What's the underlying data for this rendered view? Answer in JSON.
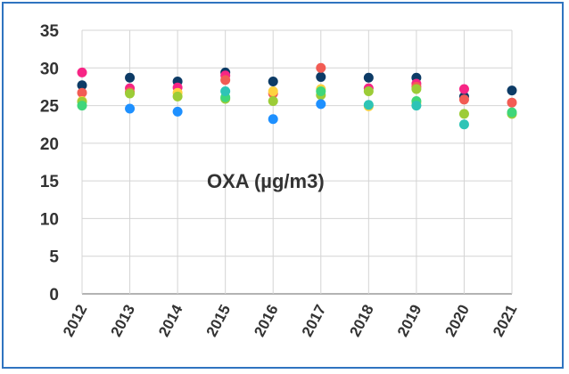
{
  "chart_data": {
    "type": "scatter",
    "title": "OXA (µg/m3)",
    "xlabel": "",
    "ylabel": "",
    "x": [
      "2012",
      "2013",
      "2014",
      "2015",
      "2016",
      "2017",
      "2018",
      "2019",
      "2020",
      "2021"
    ],
    "ylim": [
      0,
      35
    ],
    "yticks": [
      "0",
      "5",
      "10",
      "15",
      "20",
      "25",
      "30",
      "35"
    ],
    "grid": true,
    "legend": "none",
    "series": [
      {
        "color": "#0d3b66",
        "values": [
          27.7,
          28.7,
          28.2,
          29.4,
          28.2,
          28.8,
          28.7,
          28.7,
          26.2,
          27.0
        ]
      },
      {
        "color": "#f72585",
        "values": [
          29.4,
          27.3,
          27.4,
          29.0,
          null,
          null,
          27.3,
          27.9,
          27.2,
          null
        ]
      },
      {
        "color": "#f25c54",
        "values": [
          26.7,
          26.8,
          null,
          28.4,
          26.6,
          30.0,
          null,
          27.5,
          25.8,
          25.4
        ]
      },
      {
        "color": "#ffd23f",
        "values": [
          25.6,
          null,
          26.7,
          null,
          26.9,
          27.2,
          24.9,
          25.4,
          null,
          null
        ]
      },
      {
        "color": "#9ccc37",
        "values": [
          25.5,
          26.6,
          26.2,
          25.9,
          25.6,
          26.4,
          26.9,
          27.2,
          23.9,
          23.9
        ]
      },
      {
        "color": "#3fd67a",
        "values": [
          25.0,
          null,
          null,
          26.1,
          null,
          26.9,
          null,
          25.6,
          null,
          24.1
        ]
      },
      {
        "color": "#2ec4b6",
        "values": [
          null,
          null,
          null,
          26.9,
          null,
          null,
          25.1,
          25.0,
          22.5,
          null
        ]
      },
      {
        "color": "#1e90ff",
        "values": [
          null,
          24.6,
          24.2,
          null,
          23.2,
          25.2,
          null,
          null,
          null,
          null
        ]
      }
    ]
  }
}
